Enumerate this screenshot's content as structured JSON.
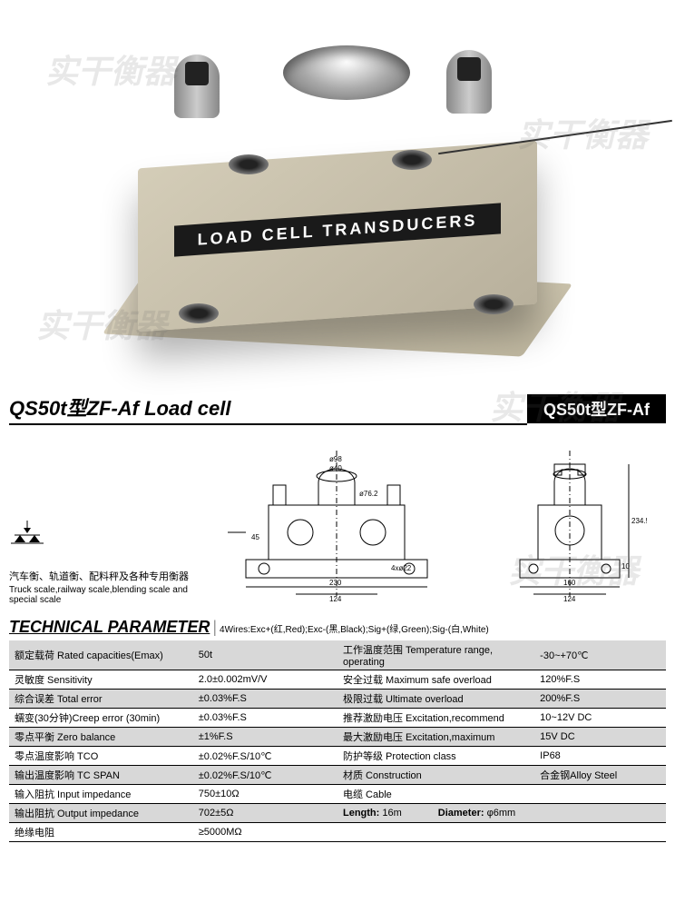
{
  "photo": {
    "label_text": "LOAD CELL TRANSDUCERS",
    "watermark_text": "实干衡器"
  },
  "title": {
    "left": "QS50t型ZF-Af Load cell",
    "badge": "QS50t型ZF-Af"
  },
  "diagram": {
    "front": {
      "dims": {
        "d1": "ø98",
        "d2": "ø40",
        "d3": "ø76.2",
        "h1": "45",
        "slot": "4xø22",
        "w1": "124",
        "w2": "230"
      }
    },
    "side": {
      "dims": {
        "h": "234.5",
        "t": "10",
        "w1": "124",
        "w2": "160"
      }
    }
  },
  "usage": {
    "cn": "汽车衡、轨道衡、配料秤及各种专用衡器",
    "en": "Truck scale,railway scale,blending scale and special scale"
  },
  "tp": {
    "title": "TECHNICAL PARAMETER",
    "wires": "4Wires:Exc+(红,Red);Exc-(黑,Black);Sig+(绿,Green);Sig-(白,White)"
  },
  "params": [
    {
      "l1": "额定载荷 Rated capacities(Emax)",
      "v1": "50t",
      "l2": "工作温度范围 Temperature range, operating",
      "v2": "-30~+70℃"
    },
    {
      "l1": "灵敏度 Sensitivity",
      "v1": "2.0±0.002mV/V",
      "l2": "安全过载 Maximum safe overload",
      "v2": "120%F.S"
    },
    {
      "l1": "综合误差 Total error",
      "v1": "±0.03%F.S",
      "l2": "极限过载 Ultimate overload",
      "v2": "200%F.S"
    },
    {
      "l1": "蠕变(30分钟)Creep error (30min)",
      "v1": "±0.03%F.S",
      "l2": "推荐激励电压 Excitation,recommend",
      "v2": "10~12V DC"
    },
    {
      "l1": "零点平衡 Zero balance",
      "v1": "±1%F.S",
      "l2": "最大激励电压 Excitation,maximum",
      "v2": "15V DC"
    },
    {
      "l1": "零点温度影响 TCO",
      "v1": "±0.02%F.S/10℃",
      "l2": "防护等级 Protection class",
      "v2": "IP68"
    },
    {
      "l1": "输出温度影响 TC SPAN",
      "v1": "±0.02%F.S/10℃",
      "l2": "材质 Construction",
      "v2": "合金钢Alloy Steel"
    },
    {
      "l1": "输入阻抗 Input  impedance",
      "v1": "750±10Ω",
      "l2": "电缆 Cable",
      "v2": ""
    },
    {
      "l1": "输出阻抗 Output  impedance",
      "v1": "702±5Ω",
      "l2": "",
      "v2": ""
    },
    {
      "l1": "绝缘电阻",
      "v1": "≥5000MΩ",
      "l2": "",
      "v2": ""
    }
  ],
  "cable": {
    "length_label": "Length:",
    "length": "16m",
    "diameter_label": "Diameter:",
    "diameter": "φ6mm"
  }
}
